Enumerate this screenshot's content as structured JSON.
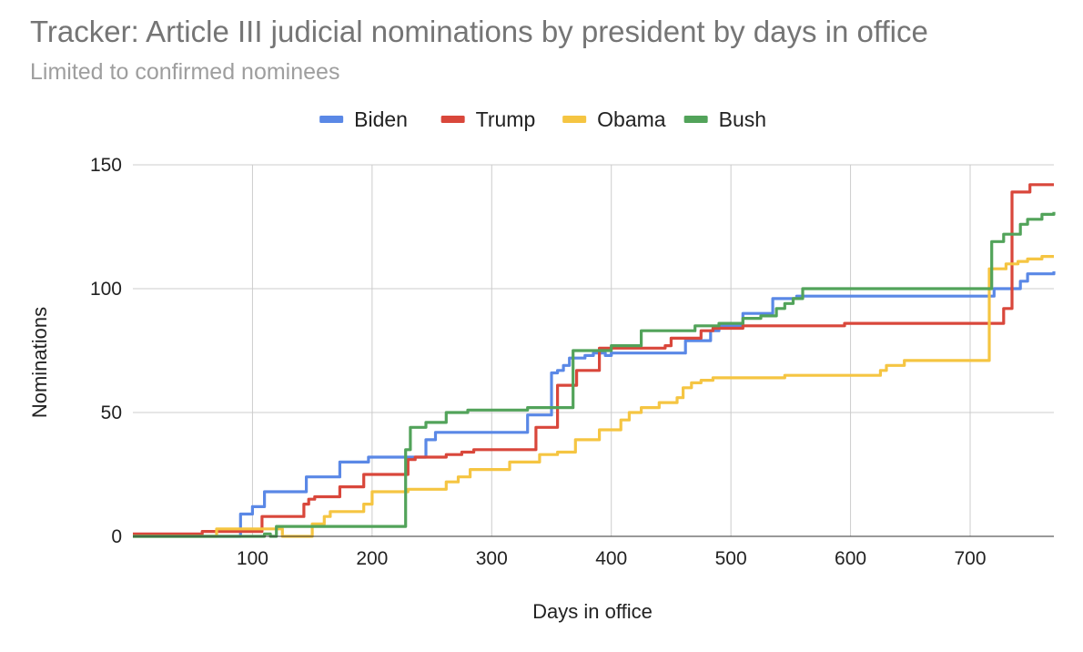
{
  "chart_data": {
    "type": "line",
    "title": "Tracker: Article III judicial nominations by president by days in office",
    "subtitle": "Limited to confirmed nominees",
    "xlabel": "Days in office",
    "ylabel": "Nominations",
    "xlim": [
      0,
      770
    ],
    "ylim": [
      0,
      150
    ],
    "x_ticks": [
      100,
      200,
      300,
      400,
      500,
      600,
      700
    ],
    "y_ticks": [
      0,
      50,
      100,
      150
    ],
    "grid": true,
    "legend_position": "top",
    "step": true,
    "series": [
      {
        "name": "Biden",
        "color": "#5a88e6",
        "points": [
          [
            0,
            0
          ],
          [
            90,
            9
          ],
          [
            100,
            12
          ],
          [
            110,
            18
          ],
          [
            145,
            24
          ],
          [
            173,
            30
          ],
          [
            197,
            32
          ],
          [
            225,
            32
          ],
          [
            230,
            32
          ],
          [
            245,
            39
          ],
          [
            253,
            42
          ],
          [
            260,
            42
          ],
          [
            328,
            42
          ],
          [
            330,
            49
          ],
          [
            348,
            49
          ],
          [
            350,
            66
          ],
          [
            355,
            67
          ],
          [
            360,
            69
          ],
          [
            365,
            72
          ],
          [
            378,
            73
          ],
          [
            385,
            74
          ],
          [
            395,
            73
          ],
          [
            400,
            74
          ],
          [
            460,
            74
          ],
          [
            462,
            79
          ],
          [
            480,
            79
          ],
          [
            483,
            83
          ],
          [
            490,
            85
          ],
          [
            500,
            85
          ],
          [
            510,
            90
          ],
          [
            530,
            90
          ],
          [
            535,
            96
          ],
          [
            555,
            97
          ],
          [
            705,
            97
          ],
          [
            718,
            97
          ],
          [
            720,
            100
          ],
          [
            740,
            100
          ],
          [
            742,
            103
          ],
          [
            748,
            106
          ],
          [
            765,
            106
          ],
          [
            770,
            107
          ]
        ]
      },
      {
        "name": "Trump",
        "color": "#d9473b",
        "points": [
          [
            0,
            1
          ],
          [
            55,
            1
          ],
          [
            58,
            2
          ],
          [
            85,
            2
          ],
          [
            108,
            8
          ],
          [
            140,
            8
          ],
          [
            143,
            13
          ],
          [
            147,
            15
          ],
          [
            152,
            16
          ],
          [
            170,
            16
          ],
          [
            173,
            20
          ],
          [
            190,
            20
          ],
          [
            193,
            25
          ],
          [
            228,
            25
          ],
          [
            230,
            31
          ],
          [
            236,
            32
          ],
          [
            260,
            32
          ],
          [
            262,
            33
          ],
          [
            275,
            34
          ],
          [
            285,
            35
          ],
          [
            335,
            35
          ],
          [
            337,
            44
          ],
          [
            352,
            44
          ],
          [
            355,
            61
          ],
          [
            368,
            61
          ],
          [
            371,
            67
          ],
          [
            388,
            67
          ],
          [
            390,
            76
          ],
          [
            440,
            76
          ],
          [
            445,
            77
          ],
          [
            450,
            80
          ],
          [
            470,
            80
          ],
          [
            475,
            83
          ],
          [
            485,
            84
          ],
          [
            510,
            85
          ],
          [
            595,
            86
          ],
          [
            725,
            86
          ],
          [
            728,
            92
          ],
          [
            733,
            92
          ],
          [
            735,
            139
          ],
          [
            748,
            139
          ],
          [
            750,
            142
          ],
          [
            770,
            142
          ]
        ]
      },
      {
        "name": "Obama",
        "color": "#f5c542",
        "points": [
          [
            0,
            0
          ],
          [
            70,
            3
          ],
          [
            118,
            3
          ],
          [
            125,
            0
          ],
          [
            150,
            5
          ],
          [
            160,
            8
          ],
          [
            165,
            10
          ],
          [
            190,
            10
          ],
          [
            193,
            13
          ],
          [
            200,
            18
          ],
          [
            225,
            18
          ],
          [
            230,
            19
          ],
          [
            255,
            19
          ],
          [
            262,
            22
          ],
          [
            272,
            24
          ],
          [
            282,
            27
          ],
          [
            310,
            27
          ],
          [
            315,
            30
          ],
          [
            335,
            30
          ],
          [
            340,
            33
          ],
          [
            355,
            34
          ],
          [
            365,
            34
          ],
          [
            370,
            39
          ],
          [
            385,
            39
          ],
          [
            390,
            43
          ],
          [
            405,
            43
          ],
          [
            408,
            47
          ],
          [
            415,
            50
          ],
          [
            425,
            52
          ],
          [
            440,
            54
          ],
          [
            455,
            56
          ],
          [
            460,
            60
          ],
          [
            467,
            62
          ],
          [
            475,
            63
          ],
          [
            485,
            64
          ],
          [
            535,
            64
          ],
          [
            545,
            65
          ],
          [
            620,
            65
          ],
          [
            625,
            67
          ],
          [
            630,
            69
          ],
          [
            645,
            71
          ],
          [
            712,
            71
          ],
          [
            716,
            108
          ],
          [
            725,
            108
          ],
          [
            730,
            110
          ],
          [
            740,
            111
          ],
          [
            748,
            112
          ],
          [
            760,
            113
          ],
          [
            770,
            113
          ]
        ]
      },
      {
        "name": "Bush",
        "color": "#52a35a",
        "points": [
          [
            0,
            0
          ],
          [
            110,
            1
          ],
          [
            115,
            0
          ],
          [
            120,
            4
          ],
          [
            225,
            4
          ],
          [
            228,
            35
          ],
          [
            232,
            44
          ],
          [
            245,
            46
          ],
          [
            262,
            50
          ],
          [
            280,
            51
          ],
          [
            300,
            51
          ],
          [
            330,
            52
          ],
          [
            365,
            52
          ],
          [
            368,
            75
          ],
          [
            395,
            75
          ],
          [
            400,
            77
          ],
          [
            420,
            77
          ],
          [
            425,
            83
          ],
          [
            460,
            83
          ],
          [
            470,
            85
          ],
          [
            485,
            85
          ],
          [
            490,
            86
          ],
          [
            508,
            86
          ],
          [
            510,
            88
          ],
          [
            520,
            88
          ],
          [
            525,
            89
          ],
          [
            533,
            89
          ],
          [
            538,
            92
          ],
          [
            545,
            94
          ],
          [
            552,
            96
          ],
          [
            560,
            100
          ],
          [
            715,
            100
          ],
          [
            718,
            119
          ],
          [
            726,
            119
          ],
          [
            728,
            122
          ],
          [
            740,
            122
          ],
          [
            742,
            126
          ],
          [
            748,
            128
          ],
          [
            760,
            130
          ],
          [
            770,
            131
          ]
        ]
      }
    ]
  }
}
